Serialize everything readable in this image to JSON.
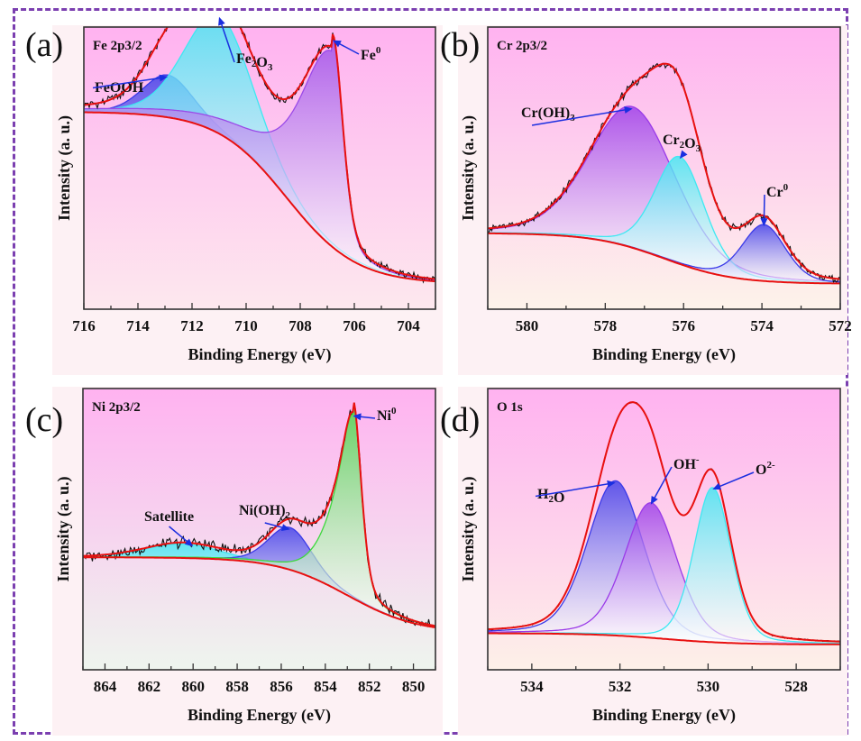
{
  "figure": {
    "border_color": "#7b3fb0",
    "ylabel": "Intensity (a. u.)",
    "xlabel": "Binding Energy (eV)"
  },
  "chart_data": [
    {
      "type": "line",
      "panel": "(a)",
      "title": "Fe 2p3/2",
      "xlabel": "Binding Energy (eV)",
      "ylabel": "Intensity (a. u.)",
      "xlim": [
        716,
        703
      ],
      "x_reversed": true,
      "xticks": [
        716,
        714,
        712,
        710,
        708,
        706,
        704
      ],
      "ylim": [
        0,
        1
      ],
      "background_gradient": [
        "#ffb2f0",
        "#fde8ee"
      ],
      "components": [
        {
          "name": "FeOOH",
          "center": 712.9,
          "height": 0.15,
          "fwhm": 2.2,
          "color": "#3a3ae8"
        },
        {
          "name": "Fe2O3",
          "center": 711.0,
          "height": 0.42,
          "fwhm": 3.0,
          "color": "#3ee8f2"
        },
        {
          "name": "Fe0",
          "center": 706.8,
          "height": 0.74,
          "fwhm": 0.9,
          "color": "#9a4ae8",
          "tail": 3.5
        }
      ],
      "background_curve": {
        "color": "#e81010",
        "start": 0.7,
        "end": 0.09,
        "inflection": 708.5
      },
      "fit_color": "#e81010",
      "raw_color": "#111111",
      "annotations": [
        {
          "text": "FeOOH",
          "target": 712.9
        },
        {
          "text": "Fe2O3",
          "target": 711.0
        },
        {
          "text": "Fe0",
          "target": 706.8
        }
      ]
    },
    {
      "type": "line",
      "panel": "(b)",
      "title": "Cr 2p3/2",
      "xlabel": "Binding Energy (eV)",
      "ylabel": "Intensity (a. u.)",
      "xlim": [
        581,
        572
      ],
      "x_reversed": true,
      "xticks": [
        580,
        578,
        576,
        574,
        572
      ],
      "ylim": [
        0,
        1
      ],
      "background_gradient": [
        "#ffb2f0",
        "#fdf3ea"
      ],
      "components": [
        {
          "name": "Cr(OH)3",
          "center": 577.3,
          "height": 0.5,
          "fwhm": 2.6,
          "color": "#9a3ae8"
        },
        {
          "name": "Cr2O3",
          "center": 576.1,
          "height": 0.38,
          "fwhm": 1.5,
          "color": "#3ee8f2"
        },
        {
          "name": "Cr0",
          "center": 573.95,
          "height": 0.2,
          "fwhm": 1.3,
          "color": "#3a3ae8"
        }
      ],
      "background_curve": {
        "color": "#e81010",
        "start": 0.27,
        "end": 0.09,
        "inflection": 576.5
      },
      "fit_color": "#e81010",
      "raw_color": "#111111",
      "annotations": [
        {
          "text": "Cr(OH)3",
          "target": 577.3
        },
        {
          "text": "Cr2O3",
          "target": 576.1
        },
        {
          "text": "Cr0",
          "target": 573.95
        }
      ]
    },
    {
      "type": "line",
      "panel": "(c)",
      "title": "Ni 2p3/2",
      "xlabel": "Binding Energy (eV)",
      "ylabel": "Intensity (a. u.)",
      "xlim": [
        865,
        849
      ],
      "x_reversed": true,
      "xticks": [
        864,
        862,
        860,
        858,
        856,
        854,
        852,
        850
      ],
      "ylim": [
        0,
        1
      ],
      "background_gradient": [
        "#ffb2f0",
        "#eef5ee"
      ],
      "components": [
        {
          "name": "Satellite",
          "center": 860.5,
          "height": 0.05,
          "fwhm": 4.0,
          "color": "#3ee8f2"
        },
        {
          "name": "Ni(OH)2",
          "center": 855.6,
          "height": 0.15,
          "fwhm": 2.3,
          "color": "#3a3ae8"
        },
        {
          "name": "Ni0",
          "center": 852.75,
          "height": 0.7,
          "fwhm": 0.9,
          "color": "#3ed83e",
          "tail": 1.5
        }
      ],
      "background_curve": {
        "color": "#e81010",
        "start": 0.4,
        "end": 0.13,
        "inflection": 853.0
      },
      "fit_color": "#e81010",
      "raw_color": "#111111",
      "annotations": [
        {
          "text": "Satellite",
          "target": 860.0
        },
        {
          "text": "Ni(OH)2",
          "target": 855.6
        },
        {
          "text": "Ni0",
          "target": 852.75
        }
      ]
    },
    {
      "type": "line",
      "panel": "(d)",
      "title": "O 1s",
      "xlabel": "Binding Energy (eV)",
      "ylabel": "Intensity (a. u.)",
      "xlim": [
        535,
        527
      ],
      "x_reversed": true,
      "xticks": [
        534,
        532,
        530,
        528
      ],
      "ylim": [
        0,
        1
      ],
      "background_gradient": [
        "#ffb2f0",
        "#fdf0e8"
      ],
      "components": [
        {
          "name": "H2O",
          "center": 532.1,
          "height": 0.55,
          "fwhm": 1.5,
          "color": "#3a3ae8"
        },
        {
          "name": "OH-",
          "center": 531.3,
          "height": 0.48,
          "fwhm": 1.4,
          "color": "#9a3ae8"
        },
        {
          "name": "O2-",
          "center": 529.9,
          "height": 0.55,
          "fwhm": 1.0,
          "color": "#3ee8f2"
        }
      ],
      "background_curve": {
        "color": "#e81010",
        "start": 0.13,
        "end": 0.09,
        "inflection": 531.0
      },
      "fit_color": "#e81010",
      "raw_color": "#111111",
      "annotations": [
        {
          "text": "H2O",
          "target": 532.1
        },
        {
          "text": "OH-",
          "target": 531.3
        },
        {
          "text": "O2-",
          "target": 529.9
        }
      ]
    }
  ]
}
